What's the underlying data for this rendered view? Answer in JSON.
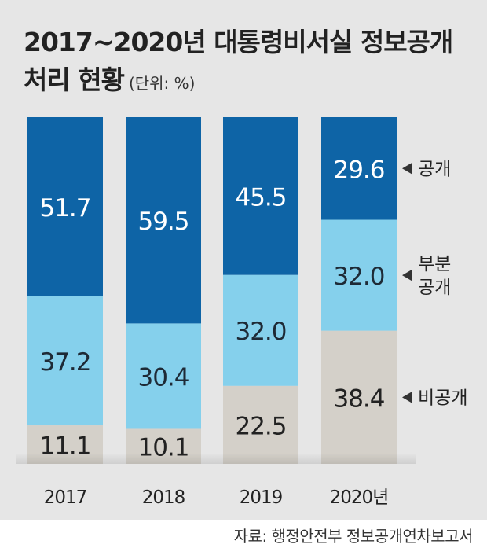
{
  "title_line1": "2017~2020년 대통령비서실 정보공개",
  "title_line2": "처리 현황",
  "unit": "(단위: %)",
  "source": "자료: 행정안전부 정보공개연차보고서",
  "colors": {
    "public": "#0e64a6",
    "partial": "#85d0ec",
    "nonpublic": "#d4d0c9",
    "panel": "#e6e6e6"
  },
  "chart_data": {
    "type": "bar",
    "stacked": true,
    "categories": [
      "2017",
      "2018",
      "2019",
      "2020년"
    ],
    "series": [
      {
        "key": "nonpublic",
        "name": "비공개",
        "values": [
          11.1,
          10.1,
          22.5,
          38.4
        ],
        "labels": [
          "11.1",
          "10.1",
          "22.5",
          "38.4"
        ]
      },
      {
        "key": "partial",
        "name": "부분\n공개",
        "values": [
          37.2,
          30.4,
          32.0,
          32.0
        ],
        "labels": [
          "37.2",
          "30.4",
          "32.0",
          "32.0"
        ]
      },
      {
        "key": "public",
        "name": "공개",
        "values": [
          51.7,
          59.5,
          45.5,
          29.6
        ],
        "labels": [
          "51.7",
          "59.5",
          "45.5",
          "29.6"
        ]
      }
    ],
    "ylim": [
      0,
      100
    ],
    "legend": "right, arrows pointing to 2020 segments",
    "grid": false
  }
}
